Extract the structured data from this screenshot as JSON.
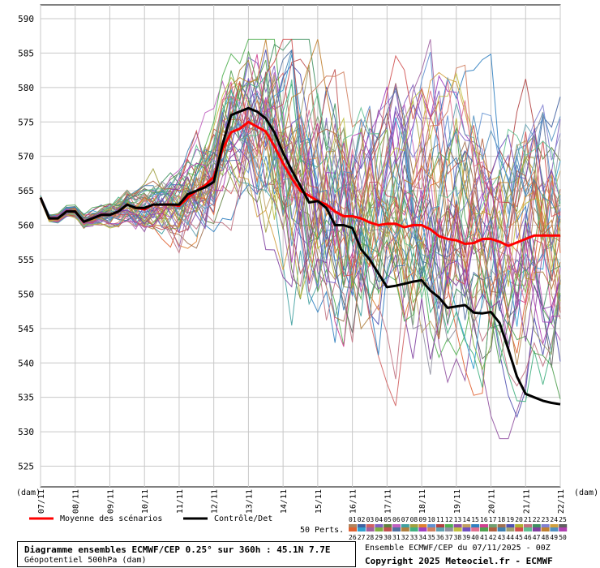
{
  "chart_data": {
    "type": "line",
    "ylim": [
      522,
      592
    ],
    "yticks": [
      525,
      530,
      535,
      540,
      545,
      550,
      555,
      560,
      565,
      570,
      575,
      580,
      585,
      590
    ],
    "xlim": [
      0,
      15
    ],
    "xticks": [
      "07/11",
      "08/11",
      "09/11",
      "10/11",
      "11/11",
      "12/11",
      "13/11",
      "14/11",
      "15/11",
      "16/11",
      "17/11",
      "18/11",
      "19/11",
      "20/11",
      "21/11",
      "22/11"
    ],
    "unit_left": "(dam)",
    "unit_right": "(dam)",
    "grid": true,
    "mean_series": {
      "name": "Moyenne des scénarios",
      "color": "#ff0000",
      "x": [
        0,
        0.25,
        0.5,
        0.75,
        1,
        1.25,
        1.5,
        1.75,
        2,
        2.25,
        2.5,
        2.75,
        3,
        3.25,
        3.5,
        3.75,
        4,
        4.25,
        4.5,
        4.75,
        5,
        5.25,
        5.5,
        5.75,
        6,
        6.25,
        6.5,
        6.75,
        7,
        7.25,
        7.5,
        7.75,
        8,
        8.25,
        8.5,
        8.75,
        9,
        9.25,
        9.5,
        9.75,
        10,
        10.25,
        10.5,
        10.75,
        11,
        11.25,
        11.5,
        11.75,
        12,
        12.25,
        12.5,
        12.75,
        13,
        13.25,
        13.5,
        13.75,
        14,
        14.25,
        14.5,
        14.75,
        15
      ],
      "y": [
        564,
        561,
        561,
        562,
        562,
        560.5,
        561,
        561.5,
        561.5,
        562,
        563,
        562.5,
        562.3,
        563,
        563,
        563,
        562.8,
        564,
        565,
        565.8,
        567,
        571,
        573.5,
        574,
        575,
        574.3,
        573.6,
        571.5,
        569,
        566.8,
        565,
        564.3,
        563.5,
        563,
        562,
        561.3,
        561.3,
        561,
        560.4,
        560,
        560.2,
        560.2,
        559.7,
        560,
        560,
        559.4,
        558.4,
        558,
        557.8,
        557.3,
        557.4,
        558,
        558,
        557.6,
        557,
        557.5,
        558,
        558.5,
        558.5,
        558.5,
        558.5
      ]
    },
    "control_series": {
      "name": "Contrôle/Det",
      "color": "#000000",
      "x": [
        0,
        0.25,
        0.5,
        0.75,
        1,
        1.25,
        1.5,
        1.75,
        2,
        2.25,
        2.5,
        2.75,
        3,
        3.25,
        3.5,
        3.75,
        4,
        4.25,
        4.5,
        4.75,
        5,
        5.25,
        5.5,
        5.75,
        6,
        6.25,
        6.5,
        6.75,
        7,
        7.25,
        7.5,
        7.75,
        8,
        8.25,
        8.5,
        8.75,
        9,
        9.25,
        9.5,
        9.75,
        10,
        10.25,
        10.5,
        10.75,
        11,
        11.25,
        11.5,
        11.75,
        12,
        12.25,
        12.5,
        12.75,
        13,
        13.25,
        13.5,
        13.75,
        14,
        14.25,
        14.5,
        14.75,
        15
      ],
      "y": [
        564,
        561,
        561,
        562,
        562,
        560.5,
        561,
        561.5,
        561.5,
        562,
        563,
        562.5,
        562.5,
        563,
        563,
        563,
        563,
        564.5,
        565,
        565.5,
        566.3,
        571.7,
        576,
        576.5,
        577,
        576.5,
        575.5,
        573.5,
        570.5,
        568,
        565.7,
        563.3,
        563.5,
        562.5,
        560,
        560,
        559.6,
        556.5,
        555,
        553,
        551,
        551.2,
        551.5,
        551.8,
        552,
        550.5,
        549.5,
        548,
        548.2,
        548.4,
        547.3,
        547.2,
        547.4,
        545.8,
        542,
        538,
        535.5,
        535,
        534.5,
        534.2,
        534
      ]
    },
    "perturbations": {
      "label": "50 Perts.",
      "count": 50,
      "numbers": [
        "01",
        "02",
        "03",
        "04",
        "05",
        "06",
        "07",
        "08",
        "09",
        "10",
        "11",
        "12",
        "13",
        "14",
        "15",
        "16",
        "17",
        "18",
        "19",
        "20",
        "21",
        "22",
        "23",
        "24",
        "25",
        "26",
        "27",
        "28",
        "29",
        "30",
        "31",
        "32",
        "33",
        "34",
        "35",
        "36",
        "37",
        "38",
        "39",
        "40",
        "41",
        "42",
        "43",
        "44",
        "45",
        "46",
        "47",
        "48",
        "49",
        "50"
      ],
      "colors": [
        "#b0845c",
        "#4060a0",
        "#d06060",
        "#8060c0",
        "#608040",
        "#c060c0",
        "#40a0a0",
        "#a0a040",
        "#e08030",
        "#6090d0",
        "#b04040",
        "#50b050",
        "#9050a0",
        "#c0a060",
        "#3080c0",
        "#d04090",
        "#70a070",
        "#a07050",
        "#5050b0",
        "#b0b030",
        "#c07080",
        "#409060",
        "#8080d0",
        "#d0a040",
        "#606060",
        "#e06030",
        "#30a0d0",
        "#a060a0",
        "#80b040",
        "#c05050",
        "#5070a0",
        "#b08040",
        "#40b080",
        "#a040c0",
        "#d08060",
        "#60a0b0",
        "#9090a0",
        "#c0c040",
        "#7050c0",
        "#e07090",
        "#50a050",
        "#b06040",
        "#4080b0",
        "#a0a070",
        "#d05050",
        "#60c090",
        "#8040a0",
        "#c08030",
        "#5090c0",
        "#b040b0"
      ]
    }
  },
  "legend": {
    "mean_label": "Moyenne des scénarios",
    "control_label": "Contrôle/Det"
  },
  "footer": {
    "title": "Diagramme ensembles ECMWF/CEP 0.25° sur 360h : 45.1N 7.7E",
    "subtitle": "Géopotentiel 500hPa (dam)",
    "run": "Ensemble ECMWF/CEP du 07/11/2025 - 00Z",
    "copyright": "Copyright 2025 Meteociel.fr - ECMWF"
  }
}
